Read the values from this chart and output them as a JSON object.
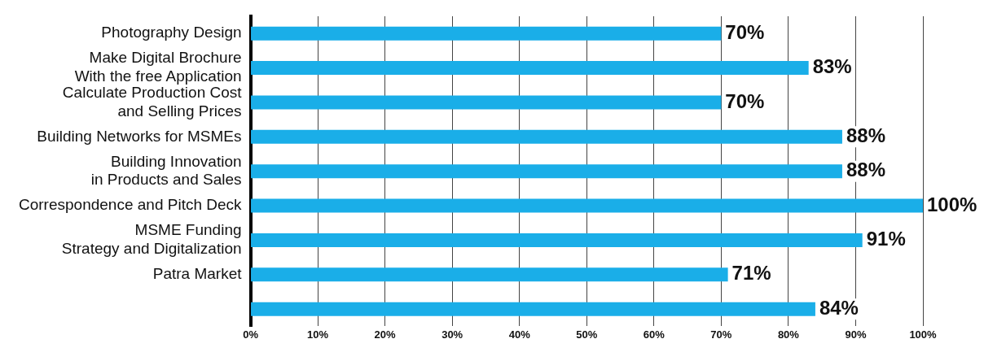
{
  "chart_data": {
    "type": "bar",
    "orientation": "horizontal",
    "categories": [
      "Photography Design",
      "Make Digital Brochure\nWith the free Application",
      "Calculate Production Cost\nand Selling Prices",
      "Building Networks for MSMEs",
      "Building Innovation\nin Products and Sales",
      "Correspondence and Pitch Deck",
      "MSME Funding\nStrategy and Digitalization",
      "Patra Market",
      null
    ],
    "values": [
      70,
      83,
      70,
      88,
      88,
      100,
      91,
      71,
      84
    ],
    "value_labels": [
      "70%",
      "83%",
      "70%",
      "88%",
      "88%",
      "100%",
      "91%",
      "71%",
      "84%"
    ],
    "color": "#1aaee8",
    "xlim": [
      0,
      100
    ],
    "xticks": [
      {
        "value": 0,
        "label": "0%"
      },
      {
        "value": 10,
        "label": "10%"
      },
      {
        "value": 20,
        "label": "20%"
      },
      {
        "value": 30,
        "label": "30%"
      },
      {
        "value": 40,
        "label": "40%"
      },
      {
        "value": 50,
        "label": "50%"
      },
      {
        "value": 60,
        "label": "60%"
      },
      {
        "value": 70,
        "label": "70%"
      },
      {
        "value": 80,
        "label": "80%"
      },
      {
        "value": 90,
        "label": "90%"
      },
      {
        "value": 100,
        "label": "100%"
      }
    ],
    "grid": "x"
  }
}
